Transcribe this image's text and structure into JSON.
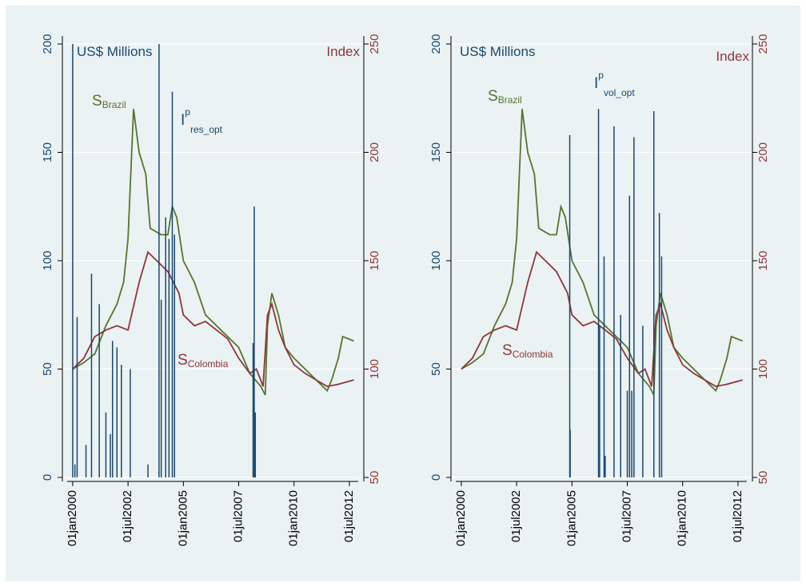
{
  "chart_data": [
    {
      "type": "line",
      "ylabel": "US$ Millions",
      "y2label": "Index",
      "xlim": [
        1999.75,
        2012.9
      ],
      "xticks": [
        {
          "value": 2000,
          "label": "01jan2000"
        },
        {
          "value": 2002.5,
          "label": "01jul2002"
        },
        {
          "value": 2005,
          "label": "01jan2005"
        },
        {
          "value": 2007.5,
          "label": "01jul2007"
        },
        {
          "value": 2010,
          "label": "01jan2010"
        },
        {
          "value": 2012.5,
          "label": "01jul2012"
        }
      ],
      "ylim": [
        0,
        200
      ],
      "yticks": [
        0,
        50,
        100,
        150,
        200
      ],
      "y2lim": [
        50,
        250
      ],
      "y2ticks": [
        50,
        100,
        150,
        200,
        250
      ],
      "grid": true,
      "series": [
        {
          "name": "S",
          "subscript": "Brazil",
          "color": "#55752f",
          "axis": "y2",
          "kind": "line",
          "x": [
            2000,
            2000.5,
            2001,
            2001.5,
            2002,
            2002.3,
            2002.5,
            2002.75,
            2003,
            2003.3,
            2003.5,
            2004,
            2004.3,
            2004.5,
            2004.7,
            2005,
            2005.5,
            2006,
            2006.5,
            2007,
            2007.5,
            2008,
            2008.5,
            2008.7,
            2008.8,
            2009,
            2009.3,
            2009.6,
            2010,
            2010.5,
            2011,
            2011.5,
            2011.7,
            2012,
            2012.2,
            2012.7
          ],
          "values": [
            100,
            103,
            107,
            120,
            130,
            140,
            160,
            220,
            200,
            190,
            165,
            162,
            162,
            175,
            170,
            150,
            140,
            125,
            120,
            115,
            110,
            98,
            92,
            88,
            120,
            135,
            125,
            110,
            105,
            100,
            95,
            90,
            95,
            105,
            115,
            113
          ]
        },
        {
          "name": "S",
          "subscript": "Colombia",
          "color": "#90353b",
          "axis": "y2",
          "kind": "line",
          "x": [
            2000,
            2000.5,
            2001,
            2001.5,
            2002,
            2002.5,
            2003,
            2003.4,
            2003.8,
            2004.3,
            2004.8,
            2005,
            2005.5,
            2006,
            2006.5,
            2007,
            2007.5,
            2008,
            2008.3,
            2008.6,
            2008.8,
            2009,
            2009.3,
            2009.6,
            2010,
            2010.5,
            2011,
            2011.5,
            2012,
            2012.7
          ],
          "values": [
            100,
            105,
            115,
            118,
            120,
            118,
            140,
            154,
            150,
            145,
            135,
            125,
            120,
            122,
            118,
            114,
            105,
            98,
            100,
            92,
            125,
            130,
            118,
            110,
            102,
            98,
            95,
            92,
            93,
            95
          ]
        },
        {
          "name": "I",
          "superscript": "p",
          "subscript": "res_opt",
          "color": "#1a476f",
          "axis": "y",
          "kind": "spike",
          "x": [
            2000,
            2000.1,
            2000.2,
            2000.6,
            2000.85,
            2001.2,
            2001.5,
            2001.7,
            2001.8,
            2002,
            2002.2,
            2002.6,
            2003.4,
            2003.9,
            2004,
            2004.2,
            2004.35,
            2004.5,
            2004.6,
            2008.15,
            2008.2,
            2008.25
          ],
          "values": [
            200,
            6,
            74,
            15,
            94,
            80,
            30,
            20,
            63,
            60,
            52,
            50,
            6,
            200,
            82,
            120,
            110,
            178,
            112,
            62,
            125,
            30
          ]
        }
      ]
    },
    {
      "type": "line",
      "ylabel": "US$ Millions",
      "y2label": "Index",
      "xlim": [
        1999.75,
        2012.9
      ],
      "xticks": [
        {
          "value": 2000,
          "label": "01jan2000"
        },
        {
          "value": 2002.5,
          "label": "01jul2002"
        },
        {
          "value": 2005,
          "label": "01jan2005"
        },
        {
          "value": 2007.5,
          "label": "01jul2007"
        },
        {
          "value": 2010,
          "label": "01jan2010"
        },
        {
          "value": 2012.5,
          "label": "01jul2012"
        }
      ],
      "ylim": [
        0,
        200
      ],
      "yticks": [
        0,
        50,
        100,
        150,
        200
      ],
      "y2lim": [
        50,
        250
      ],
      "y2ticks": [
        50,
        100,
        150,
        200,
        250
      ],
      "grid": true,
      "series": [
        {
          "name": "S",
          "subscript": "Brazil",
          "color": "#55752f",
          "axis": "y2",
          "kind": "line",
          "x": [
            2000,
            2000.5,
            2001,
            2001.5,
            2002,
            2002.3,
            2002.5,
            2002.75,
            2003,
            2003.3,
            2003.5,
            2004,
            2004.3,
            2004.5,
            2004.7,
            2005,
            2005.5,
            2006,
            2006.5,
            2007,
            2007.5,
            2008,
            2008.5,
            2008.7,
            2008.8,
            2009,
            2009.3,
            2009.6,
            2010,
            2010.5,
            2011,
            2011.5,
            2011.7,
            2012,
            2012.2,
            2012.7
          ],
          "values": [
            100,
            103,
            107,
            120,
            130,
            140,
            160,
            220,
            200,
            190,
            165,
            162,
            162,
            175,
            170,
            150,
            140,
            125,
            120,
            115,
            110,
            98,
            92,
            88,
            120,
            135,
            125,
            110,
            105,
            100,
            95,
            90,
            95,
            105,
            115,
            113
          ]
        },
        {
          "name": "S",
          "subscript": "Colombia",
          "color": "#90353b",
          "axis": "y2",
          "kind": "line",
          "x": [
            2000,
            2000.5,
            2001,
            2001.5,
            2002,
            2002.5,
            2003,
            2003.4,
            2003.8,
            2004.3,
            2004.8,
            2005,
            2005.5,
            2006,
            2006.5,
            2007,
            2007.5,
            2008,
            2008.3,
            2008.6,
            2008.8,
            2009,
            2009.3,
            2009.6,
            2010,
            2010.5,
            2011,
            2011.5,
            2012,
            2012.7
          ],
          "values": [
            100,
            105,
            115,
            118,
            120,
            118,
            140,
            154,
            150,
            145,
            135,
            125,
            120,
            122,
            118,
            114,
            105,
            98,
            100,
            92,
            125,
            130,
            118,
            110,
            102,
            98,
            95,
            92,
            93,
            95
          ]
        },
        {
          "name": "I",
          "superscript": "p",
          "subscript": "vol_opt",
          "color": "#1a476f",
          "axis": "y",
          "kind": "spike",
          "x": [
            2004.9,
            2004.92,
            2006.2,
            2006.25,
            2006.45,
            2006.5,
            2006.9,
            2007.2,
            2007.5,
            2007.6,
            2007.7,
            2007.8,
            2008.2,
            2008.7,
            2008.95,
            2009.05
          ],
          "values": [
            158,
            22,
            170,
            70,
            102,
            10,
            162,
            75,
            40,
            130,
            40,
            157,
            70,
            169,
            122,
            102
          ]
        }
      ]
    }
  ]
}
